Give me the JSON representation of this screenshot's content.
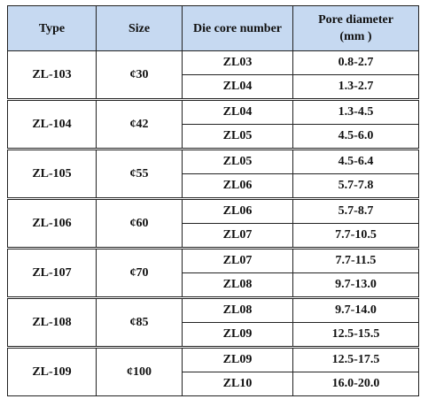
{
  "table": {
    "header": [
      "Type",
      "Size",
      "Die core number",
      "Pore diameter\n(mm )"
    ],
    "groups": [
      {
        "type": "ZL-103",
        "size": "¢30",
        "rows": [
          [
            "ZL03",
            "0.8-2.7"
          ],
          [
            "ZL04",
            "1.3-2.7"
          ]
        ]
      },
      {
        "type": "ZL-104",
        "size": "¢42",
        "rows": [
          [
            "ZL04",
            "1.3-4.5"
          ],
          [
            "ZL05",
            "4.5-6.0"
          ]
        ]
      },
      {
        "type": "ZL-105",
        "size": "¢55",
        "rows": [
          [
            "ZL05",
            "4.5-6.4"
          ],
          [
            "ZL06",
            "5.7-7.8"
          ]
        ]
      },
      {
        "type": "ZL-106",
        "size": "¢60",
        "rows": [
          [
            "ZL06",
            "5.7-8.7"
          ],
          [
            "ZL07",
            "7.7-10.5"
          ]
        ]
      },
      {
        "type": "ZL-107",
        "size": "¢70",
        "rows": [
          [
            "ZL07",
            "7.7-11.5"
          ],
          [
            "ZL08",
            "9.7-13.0"
          ]
        ]
      },
      {
        "type": "ZL-108",
        "size": "¢85",
        "rows": [
          [
            "ZL08",
            "9.7-14.0"
          ],
          [
            "ZL09",
            "12.5-15.5"
          ]
        ]
      },
      {
        "type": "ZL-109",
        "size": "¢100",
        "rows": [
          [
            "ZL09",
            "12.5-17.5"
          ],
          [
            "ZL10",
            "16.0-20.0"
          ]
        ]
      }
    ]
  }
}
